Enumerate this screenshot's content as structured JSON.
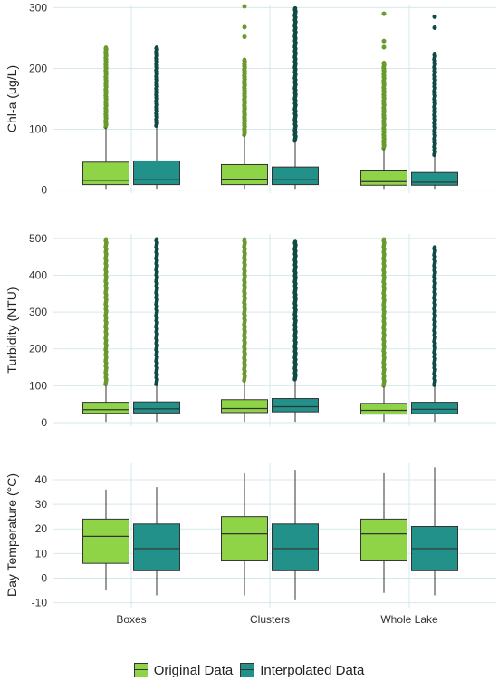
{
  "chart_data": [
    {
      "type": "box",
      "ylabel": "Chl-a (μg/L)",
      "ylim": [
        -5,
        305
      ],
      "yticks": [
        0,
        100,
        200,
        300
      ],
      "categories": [
        "Boxes",
        "Clusters",
        "Whole Lake"
      ],
      "series": [
        {
          "name": "Original Data",
          "boxes": [
            {
              "whisker_low": 2,
              "q1": 9,
              "median": 16,
              "q3": 46,
              "whisker_high": 103,
              "outliers_range": [
                103,
                235
              ]
            },
            {
              "whisker_low": 2,
              "q1": 9,
              "median": 18,
              "q3": 42,
              "whisker_high": 90,
              "outliers_range": [
                90,
                215
              ],
              "outliers_extra": [
                252,
                268,
                302
              ]
            },
            {
              "whisker_low": 2,
              "q1": 8,
              "median": 14,
              "q3": 33,
              "whisker_high": 68,
              "outliers_range": [
                68,
                210
              ],
              "outliers_extra": [
                235,
                245,
                290
              ]
            }
          ]
        },
        {
          "name": "Interpolated Data",
          "boxes": [
            {
              "whisker_low": 2,
              "q1": 9,
              "median": 17,
              "q3": 48,
              "whisker_high": 105,
              "outliers_range": [
                105,
                235
              ]
            },
            {
              "whisker_low": 2,
              "q1": 9,
              "median": 17,
              "q3": 38,
              "whisker_high": 80,
              "outliers_range": [
                80,
                300
              ]
            },
            {
              "whisker_low": 2,
              "q1": 8,
              "median": 13,
              "q3": 29,
              "whisker_high": 57,
              "outliers_range": [
                57,
                225
              ],
              "outliers_extra": [
                267,
                285
              ]
            }
          ]
        }
      ]
    },
    {
      "type": "box",
      "ylabel": "Turbidity (NTU)",
      "ylim": [
        -10,
        512
      ],
      "yticks": [
        0,
        100,
        200,
        300,
        400,
        500
      ],
      "categories": [
        "Boxes",
        "Clusters",
        "Whole Lake"
      ],
      "series": [
        {
          "name": "Original Data",
          "boxes": [
            {
              "whisker_low": 2,
              "q1": 25,
              "median": 35,
              "q3": 55,
              "whisker_high": 102,
              "outliers_range": [
                102,
                500
              ]
            },
            {
              "whisker_low": 2,
              "q1": 27,
              "median": 38,
              "q3": 62,
              "whisker_high": 112,
              "outliers_range": [
                112,
                500
              ]
            },
            {
              "whisker_low": 2,
              "q1": 23,
              "median": 33,
              "q3": 52,
              "whisker_high": 98,
              "outliers_range": [
                98,
                500
              ]
            }
          ]
        },
        {
          "name": "Interpolated Data",
          "boxes": [
            {
              "whisker_low": 2,
              "q1": 26,
              "median": 37,
              "q3": 56,
              "whisker_high": 102,
              "outliers_range": [
                102,
                500
              ]
            },
            {
              "whisker_low": 2,
              "q1": 29,
              "median": 43,
              "q3": 65,
              "whisker_high": 115,
              "outliers_range": [
                115,
                493
              ]
            },
            {
              "whisker_low": 2,
              "q1": 24,
              "median": 36,
              "q3": 55,
              "whisker_high": 100,
              "outliers_range": [
                100,
                478
              ]
            }
          ]
        }
      ]
    },
    {
      "type": "box",
      "ylabel": "Day Temperature (°C)",
      "ylim": [
        -12,
        47
      ],
      "yticks": [
        -10,
        0,
        10,
        20,
        30,
        40
      ],
      "categories": [
        "Boxes",
        "Clusters",
        "Whole Lake"
      ],
      "series": [
        {
          "name": "Original Data",
          "boxes": [
            {
              "whisker_low": -5,
              "q1": 6,
              "median": 17,
              "q3": 24,
              "whisker_high": 36
            },
            {
              "whisker_low": -7,
              "q1": 7,
              "median": 18,
              "q3": 25,
              "whisker_high": 43
            },
            {
              "whisker_low": -6,
              "q1": 7,
              "median": 18,
              "q3": 24,
              "whisker_high": 43
            }
          ]
        },
        {
          "name": "Interpolated Data",
          "boxes": [
            {
              "whisker_low": -7,
              "q1": 3,
              "median": 12,
              "q3": 22,
              "whisker_high": 37
            },
            {
              "whisker_low": -9,
              "q1": 3,
              "median": 12,
              "q3": 22,
              "whisker_high": 44
            },
            {
              "whisker_low": -7,
              "q1": 3,
              "median": 12,
              "q3": 21,
              "whisker_high": 45
            }
          ]
        }
      ]
    }
  ],
  "colors": {
    "original": "#8fd446",
    "original_outlier": "#6a9a2e",
    "interpolated": "#219189",
    "interpolated_outlier": "#0f4a44",
    "grid": "#d6e8ec"
  },
  "legend": {
    "items": [
      {
        "label": "Original Data",
        "color": "#8fd446"
      },
      {
        "label": "Interpolated Data",
        "color": "#219189"
      }
    ]
  }
}
